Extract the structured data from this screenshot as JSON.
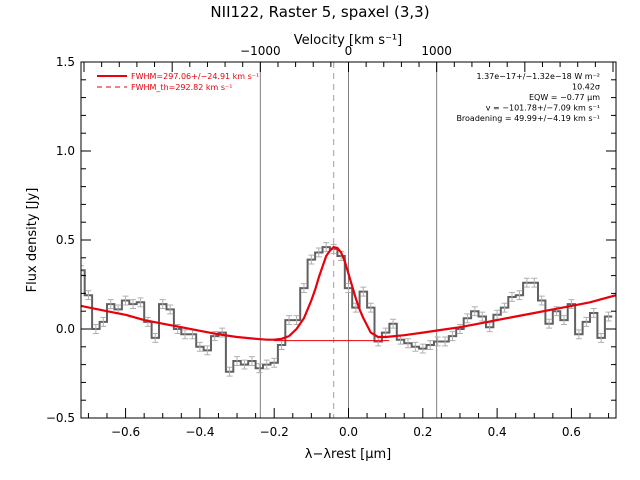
{
  "chart_data": {
    "type": "line",
    "title": "NII122, Raster 5, spaxel (3,3)",
    "xlabel": "λ−λrest [μm]",
    "ylabel": "Flux density [Jy]",
    "top_axis_label": "Velocity [km s⁻¹]",
    "xlim": [
      -0.72,
      0.72
    ],
    "ylim": [
      -0.5,
      1.5
    ],
    "top_axis_ticks": [
      {
        "label": "−1000",
        "x": -0.2373
      },
      {
        "label": "0",
        "x": 0.0
      },
      {
        "label": "1000",
        "x": 0.2373
      }
    ],
    "x_ticks": [
      {
        "label": "−0.6",
        "value": -0.6
      },
      {
        "label": "−0.4",
        "value": -0.4
      },
      {
        "label": "−0.2",
        "value": -0.2
      },
      {
        "label": "0.0",
        "value": 0.0
      },
      {
        "label": "0.2",
        "value": 0.2
      },
      {
        "label": "0.4",
        "value": 0.4
      },
      {
        "label": "0.6",
        "value": 0.6
      }
    ],
    "y_ticks": [
      {
        "label": "−0.5",
        "value": -0.5
      },
      {
        "label": "0.0",
        "value": 0.0
      },
      {
        "label": "0.5",
        "value": 0.5
      },
      {
        "label": "1.0",
        "value": 1.0
      },
      {
        "label": "1.5",
        "value": 1.5
      }
    ],
    "spectrum": {
      "x": [
        -0.72,
        -0.7,
        -0.68,
        -0.66,
        -0.64,
        -0.62,
        -0.6,
        -0.58,
        -0.56,
        -0.54,
        -0.52,
        -0.5,
        -0.48,
        -0.46,
        -0.44,
        -0.42,
        -0.4,
        -0.38,
        -0.36,
        -0.34,
        -0.32,
        -0.3,
        -0.28,
        -0.26,
        -0.24,
        -0.22,
        -0.2,
        -0.18,
        -0.16,
        -0.14,
        -0.12,
        -0.1,
        -0.08,
        -0.06,
        -0.04,
        -0.02,
        0.0,
        0.02,
        0.04,
        0.06,
        0.08,
        0.1,
        0.12,
        0.14,
        0.16,
        0.18,
        0.2,
        0.22,
        0.24,
        0.26,
        0.28,
        0.3,
        0.32,
        0.34,
        0.36,
        0.38,
        0.4,
        0.42,
        0.44,
        0.46,
        0.48,
        0.5,
        0.52,
        0.54,
        0.56,
        0.58,
        0.6,
        0.62,
        0.64,
        0.66,
        0.68,
        0.7
      ],
      "y": [
        0.33,
        0.19,
        0.0,
        0.04,
        0.14,
        0.11,
        0.16,
        0.14,
        0.15,
        0.04,
        -0.05,
        0.14,
        0.11,
        0.0,
        -0.03,
        -0.03,
        -0.1,
        -0.12,
        -0.04,
        -0.02,
        -0.24,
        -0.18,
        -0.2,
        -0.18,
        -0.22,
        -0.2,
        -0.19,
        -0.09,
        0.05,
        0.05,
        0.23,
        0.39,
        0.43,
        0.46,
        0.45,
        0.41,
        0.23,
        0.12,
        0.21,
        0.12,
        -0.07,
        -0.02,
        0.03,
        -0.06,
        -0.08,
        -0.1,
        -0.11,
        -0.09,
        -0.07,
        -0.07,
        -0.04,
        0.0,
        0.06,
        0.1,
        0.07,
        0.01,
        0.08,
        0.12,
        0.18,
        0.19,
        0.26,
        0.26,
        0.16,
        0.03,
        0.1,
        0.05,
        0.14,
        -0.03,
        0.04,
        0.09,
        -0.05,
        0.07
      ],
      "errors": 0.025
    },
    "fit_curve": {
      "x": [
        -0.72,
        -0.65,
        -0.6,
        -0.55,
        -0.5,
        -0.45,
        -0.4,
        -0.35,
        -0.3,
        -0.25,
        -0.22,
        -0.2,
        -0.18,
        -0.16,
        -0.14,
        -0.12,
        -0.1,
        -0.09,
        -0.08,
        -0.07,
        -0.06,
        -0.05,
        -0.04,
        -0.03,
        -0.02,
        -0.01,
        0.0,
        0.01,
        0.02,
        0.03,
        0.04,
        0.05,
        0.06,
        0.08,
        0.1,
        0.15,
        0.2,
        0.25,
        0.3,
        0.35,
        0.4,
        0.45,
        0.5,
        0.55,
        0.6,
        0.65,
        0.72
      ],
      "y": [
        0.13,
        0.1,
        0.08,
        0.05,
        0.03,
        0.01,
        -0.01,
        -0.03,
        -0.045,
        -0.055,
        -0.06,
        -0.06,
        -0.055,
        -0.04,
        0.0,
        0.06,
        0.16,
        0.22,
        0.29,
        0.35,
        0.41,
        0.44,
        0.46,
        0.455,
        0.43,
        0.38,
        0.31,
        0.24,
        0.17,
        0.11,
        0.06,
        0.02,
        -0.02,
        -0.045,
        -0.045,
        -0.035,
        -0.02,
        -0.005,
        0.01,
        0.03,
        0.05,
        0.07,
        0.09,
        0.11,
        0.13,
        0.15,
        0.19
      ]
    },
    "continuum_line": {
      "x": [
        -0.2,
        0.11
      ],
      "y": [
        -0.065,
        -0.065
      ]
    },
    "vertical_lines": [
      -0.2373,
      0.0,
      0.2373
    ],
    "line_center": -0.04,
    "legend": [
      {
        "label": "FWHM=297.06+/−24.91 km s⁻¹",
        "style": "solid"
      },
      {
        "label": "FWHM_th=292.82 km s⁻¹",
        "style": "dashed"
      }
    ],
    "annotations": [
      "1.37e−17+/−1.32e−18 W m⁻²",
      "10.42σ",
      "EQW = −0.77 μm",
      "v = −101.78+/−7.09 km s⁻¹",
      "Broadening = 49.99+/−4.19 km s⁻¹"
    ],
    "colors": {
      "fit": "#e8000b",
      "spectrum": "#606060",
      "errorbars": "#b0b0b0",
      "guide_lines": "#808080"
    }
  }
}
